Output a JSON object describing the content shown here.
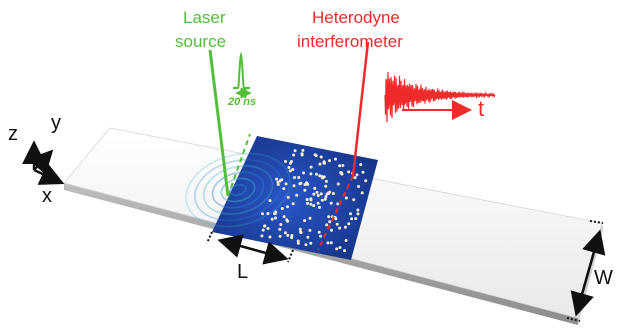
{
  "labels": {
    "laser_line1": "Laser",
    "laser_line2": "source",
    "pulse_duration": "20 ns",
    "heterodyne_line1": "Heterodyne",
    "heterodyne_line2": "interferometer",
    "time_axis": "t",
    "axis_z": "z",
    "axis_y": "y",
    "axis_x": "x",
    "length": "L",
    "width": "W"
  },
  "colors": {
    "laser": "#52bf3a",
    "interferometer": "#ee2a2a",
    "scattering_region": "#1e3fa0",
    "plate": "#f2f2f2"
  }
}
